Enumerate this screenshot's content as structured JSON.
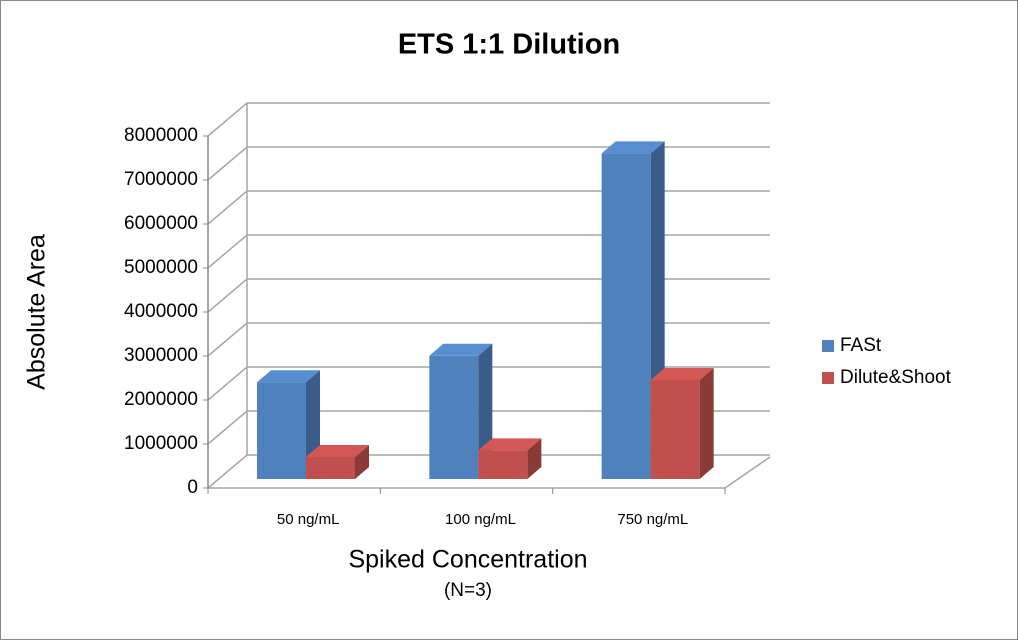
{
  "chart_data": {
    "type": "bar3d",
    "title": "ETS 1:1 Dilution",
    "xlabel": "Spiked Concentration",
    "xlabel_note": "(N=3)",
    "ylabel": "Absolute Area",
    "categories": [
      "50 ng/mL",
      "100 ng/mL",
      "750 ng/mL"
    ],
    "series": [
      {
        "name": "FASt",
        "color": "#4f81bd",
        "values": [
          2200000,
          2800000,
          7400000
        ]
      },
      {
        "name": "Dilute&Shoot",
        "color": "#c0504d",
        "values": [
          500000,
          650000,
          2250000
        ]
      }
    ],
    "ylim": [
      0,
      8000000
    ],
    "yticks": [
      0,
      1000000,
      2000000,
      3000000,
      4000000,
      5000000,
      6000000,
      7000000,
      8000000
    ],
    "grid": true,
    "legend": "right"
  }
}
